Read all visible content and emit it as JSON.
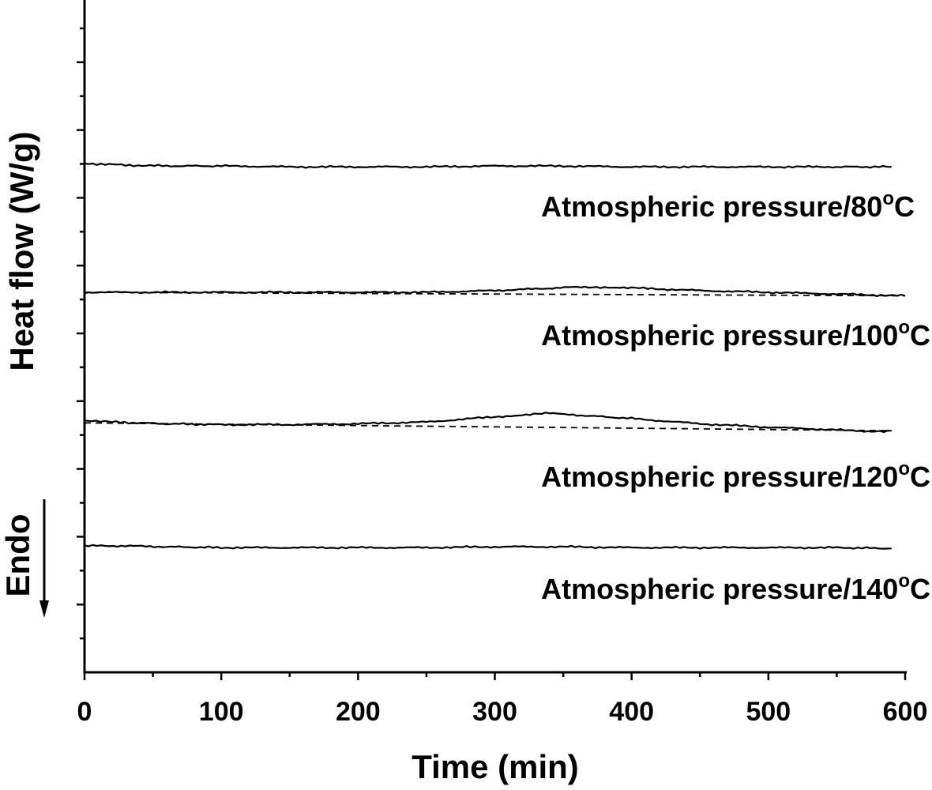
{
  "chart_data": {
    "type": "line",
    "title": "",
    "xlabel": "Time (min)",
    "ylabel": "Heat flow (W/g)",
    "endo_label": "Endo",
    "xlim": [
      0,
      600
    ],
    "x_ticks": [
      "0",
      "100",
      "200",
      "300",
      "400",
      "500",
      "600"
    ],
    "y_tick_labels": "none",
    "grid": false,
    "legend": "none",
    "line_color": "#000000",
    "series": [
      {
        "label_prefix": "Atmospheric pressure/",
        "label_value": "80",
        "label_deg": "o",
        "label_unit": "C",
        "x": [
          0,
          30,
          60,
          100,
          150,
          200,
          250,
          300,
          350,
          400,
          450,
          500,
          550,
          590
        ],
        "y": [
          0.02,
          0.0,
          -0.01,
          -0.01,
          -0.02,
          -0.02,
          -0.02,
          -0.01,
          -0.01,
          -0.02,
          -0.02,
          -0.02,
          -0.02,
          -0.02
        ]
      },
      {
        "label_prefix": "Atmospheric pressure/",
        "label_value": "100",
        "label_deg": "o",
        "label_unit": "C",
        "x": [
          0,
          50,
          100,
          150,
          200,
          250,
          300,
          330,
          360,
          380,
          400,
          450,
          500,
          550,
          600
        ],
        "y": [
          0.0,
          0.0,
          0.0,
          0.0,
          0.0,
          0.0,
          0.02,
          0.04,
          0.06,
          0.06,
          0.05,
          0.02,
          0.0,
          -0.02,
          -0.04
        ],
        "baseline": {
          "x": [
            0,
            600
          ],
          "y": [
            0.0,
            -0.04
          ]
        }
      },
      {
        "label_prefix": "Atmospheric pressure/",
        "label_value": "120",
        "label_deg": "o",
        "label_unit": "C",
        "x": [
          0,
          20,
          60,
          100,
          150,
          200,
          250,
          300,
          320,
          340,
          360,
          400,
          450,
          500,
          550,
          570,
          590
        ],
        "y": [
          0.0,
          -0.02,
          -0.04,
          -0.05,
          -0.05,
          -0.04,
          -0.02,
          0.04,
          0.06,
          0.08,
          0.06,
          0.02,
          -0.04,
          -0.08,
          -0.11,
          -0.13,
          -0.12
        ],
        "baseline": {
          "x": [
            0,
            590
          ],
          "y": [
            -0.03,
            -0.12
          ]
        }
      },
      {
        "label_prefix": "Atmospheric pressure/",
        "label_value": "140",
        "label_deg": "o",
        "label_unit": "C",
        "x": [
          0,
          30,
          60,
          100,
          150,
          200,
          250,
          300,
          350,
          400,
          450,
          500,
          550,
          590
        ],
        "y": [
          0.0,
          0.0,
          -0.01,
          -0.02,
          -0.02,
          -0.02,
          -0.02,
          -0.01,
          -0.01,
          -0.02,
          -0.02,
          -0.02,
          -0.02,
          -0.03
        ]
      }
    ]
  }
}
